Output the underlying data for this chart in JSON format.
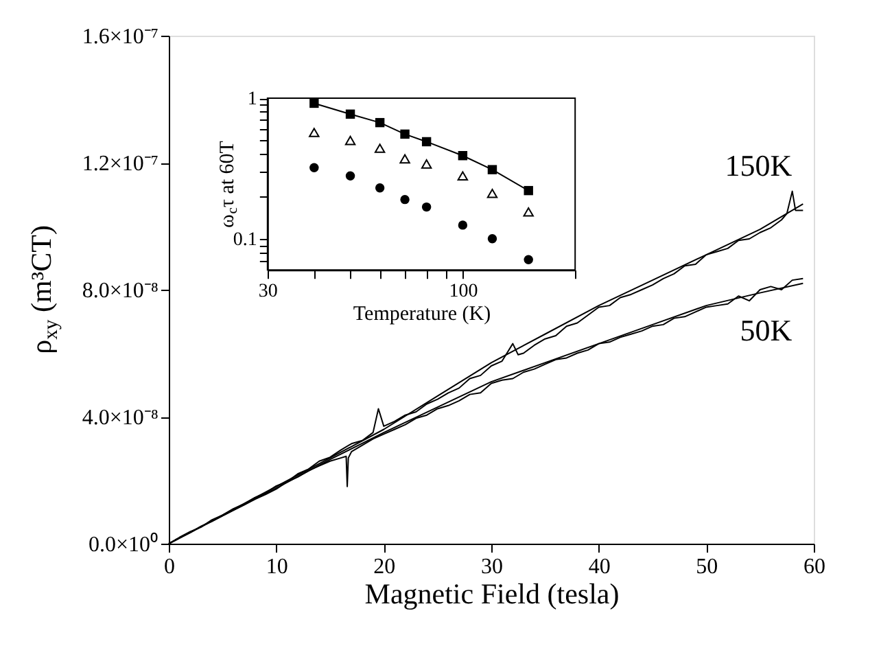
{
  "chart_data": [
    {
      "type": "line",
      "xlabel": "Magnetic Field (tesla)",
      "ylabel": "ρ$_{xy}$ (m³CT)",
      "xlim": [
        0,
        60
      ],
      "ylim": [
        0,
        1.6e-07
      ],
      "xticks": [
        0,
        10,
        20,
        30,
        40,
        50,
        60
      ],
      "yticks": [
        {
          "value": 0,
          "label": "0.0×10⁰"
        },
        {
          "value": 4e-08,
          "label": "4.0×10⁻⁸"
        },
        {
          "value": 8e-08,
          "label": "8.0×10⁻⁸"
        },
        {
          "value": 1.2e-07,
          "label": "1.2×10⁻⁷"
        },
        {
          "value": 1.6e-07,
          "label": "1.6×10⁻⁷"
        }
      ],
      "series": [
        {
          "name": "150K",
          "color": "#000000",
          "x": [
            0,
            1,
            2,
            3,
            4,
            5,
            6,
            7,
            8,
            9,
            10,
            11,
            12,
            13,
            14,
            15,
            16,
            17,
            18,
            19,
            19.5,
            20,
            21,
            22,
            23,
            24,
            25,
            26,
            27,
            28,
            29,
            30,
            31,
            32,
            32.5,
            33,
            34,
            35,
            36,
            37,
            38,
            39,
            40,
            41,
            42,
            43,
            44,
            45,
            46,
            47,
            48,
            49,
            50,
            51,
            52,
            53,
            54,
            55,
            56,
            57,
            57.5,
            58,
            58.3,
            59
          ],
          "values": [
            0,
            2e-09,
            3.8e-09,
            5.2e-09,
            7.5e-09,
            9e-09,
            1.1e-08,
            1.25e-08,
            1.45e-08,
            1.6e-08,
            1.82e-08,
            1.95e-08,
            2.2e-08,
            2.35e-08,
            2.6e-08,
            2.72e-08,
            2.95e-08,
            3.15e-08,
            3.25e-08,
            3.5e-08,
            4.25e-08,
            3.7e-08,
            3.85e-08,
            4.05e-08,
            4.15e-08,
            4.4e-08,
            4.55e-08,
            4.75e-08,
            4.9e-08,
            5.2e-08,
            5.3e-08,
            5.6e-08,
            5.75e-08,
            6.3e-08,
            5.95e-08,
            6e-08,
            6.25e-08,
            6.45e-08,
            6.55e-08,
            6.85e-08,
            6.95e-08,
            7.2e-08,
            7.45e-08,
            7.5e-08,
            7.75e-08,
            7.85e-08,
            8e-08,
            8.15e-08,
            8.35e-08,
            8.5e-08,
            8.75e-08,
            8.8e-08,
            9.1e-08,
            9.2e-08,
            9.3e-08,
            9.55e-08,
            9.6e-08,
            9.8e-08,
            9.95e-08,
            1.02e-07,
            1.04e-07,
            1.11e-07,
            1.05e-07,
            1.05e-07
          ]
        },
        {
          "color": "#000000",
          "x": [
            0,
            5,
            10,
            15,
            20,
            25,
            30,
            35,
            40,
            45,
            50,
            55,
            59
          ],
          "values": [
            0,
            9e-09,
            1.8e-08,
            2.7e-08,
            3.6e-08,
            4.65e-08,
            5.7e-08,
            6.6e-08,
            7.5e-08,
            8.3e-08,
            9.1e-08,
            9.9e-08,
            1.07e-07
          ]
        },
        {
          "name": "50K",
          "color": "#000000",
          "x": [
            0,
            1,
            2,
            3,
            4,
            5,
            6,
            7,
            8,
            9,
            10,
            11,
            12,
            13,
            14,
            15,
            16,
            16.5,
            16.6,
            16.7,
            17,
            18,
            19,
            20,
            21,
            22,
            23,
            24,
            25,
            26,
            27,
            28,
            29,
            30,
            31,
            32,
            33,
            34,
            35,
            36,
            37,
            38,
            39,
            40,
            41,
            42,
            43,
            44,
            45,
            46,
            47,
            48,
            49,
            50,
            51,
            52,
            53,
            54,
            55,
            56,
            57,
            58,
            59
          ],
          "values": [
            0,
            1.8e-09,
            3.5e-09,
            5.5e-09,
            7e-09,
            8.8e-09,
            1.05e-08,
            1.22e-08,
            1.4e-08,
            1.55e-08,
            1.72e-08,
            1.95e-08,
            2.1e-08,
            2.3e-08,
            2.45e-08,
            2.6e-08,
            2.7e-08,
            2.75e-08,
            1.8e-08,
            2.7e-08,
            2.9e-08,
            3.1e-08,
            3.3e-08,
            3.45e-08,
            3.6e-08,
            3.75e-08,
            3.95e-08,
            4.05e-08,
            4.25e-08,
            4.35e-08,
            4.5e-08,
            4.7e-08,
            4.75e-08,
            5.05e-08,
            5.15e-08,
            5.2e-08,
            5.4e-08,
            5.5e-08,
            5.65e-08,
            5.8e-08,
            5.85e-08,
            6e-08,
            6.1e-08,
            6.3e-08,
            6.35e-08,
            6.5e-08,
            6.6e-08,
            6.7e-08,
            6.85e-08,
            6.9e-08,
            7.1e-08,
            7.15e-08,
            7.3e-08,
            7.45e-08,
            7.5e-08,
            7.55e-08,
            7.8e-08,
            7.65e-08,
            8e-08,
            8.1e-08,
            8e-08,
            8.3e-08,
            8.35e-08
          ]
        },
        {
          "color": "#000000",
          "x": [
            0,
            5,
            10,
            15,
            20,
            25,
            30,
            35,
            40,
            45,
            50,
            55,
            59
          ],
          "values": [
            0,
            8.8e-09,
            1.75e-08,
            2.65e-08,
            3.5e-08,
            4.3e-08,
            5.1e-08,
            5.7e-08,
            6.3e-08,
            6.9e-08,
            7.5e-08,
            7.9e-08,
            8.2e-08
          ]
        }
      ]
    },
    {
      "type": "scatter",
      "xlabel": "Temperature (K)",
      "ylabel": "ω$_{c}$τ at 60T",
      "log": "xy",
      "xlim": [
        30,
        200
      ],
      "ylim": [
        0.06,
        1
      ],
      "xticks": [
        30,
        {
          "value": 40,
          "label": null
        },
        {
          "value": 50,
          "label": null
        },
        {
          "value": 60,
          "label": null
        },
        {
          "value": 70,
          "label": null
        },
        {
          "value": 80,
          "label": null
        },
        {
          "value": 90,
          "label": null
        },
        100,
        {
          "value": 200,
          "label": null
        }
      ],
      "yticks": [
        {
          "value": 0.07,
          "label": null
        },
        {
          "value": 0.08,
          "label": null
        },
        {
          "value": 0.09,
          "label": null
        },
        0.1,
        {
          "value": 0.2,
          "label": null
        },
        {
          "value": 0.3,
          "label": null
        },
        {
          "value": 0.4,
          "label": null
        },
        {
          "value": 0.5,
          "label": null
        },
        {
          "value": 0.6,
          "label": null
        },
        {
          "value": 0.7,
          "label": null
        },
        {
          "value": 0.8,
          "label": null
        },
        {
          "value": 0.9,
          "label": null
        },
        1
      ],
      "x": [
        40,
        50,
        60,
        70,
        80,
        100,
        120,
        150
      ],
      "series": [
        {
          "type": "line",
          "marker": "square",
          "color": "#000000",
          "values": [
            0.92,
            0.77,
            0.67,
            0.555,
            0.49,
            0.39,
            0.31,
            0.22
          ]
        },
        {
          "marker": "triangle",
          "color": "#000000",
          "values": [
            0.57,
            0.5,
            0.44,
            0.37,
            0.34,
            0.28,
            0.21,
            0.155
          ]
        },
        {
          "marker": "circle",
          "color": "#000000",
          "values": [
            0.32,
            0.28,
            0.23,
            0.19,
            0.168,
            0.125,
            0.1,
            0.071
          ]
        }
      ]
    }
  ]
}
